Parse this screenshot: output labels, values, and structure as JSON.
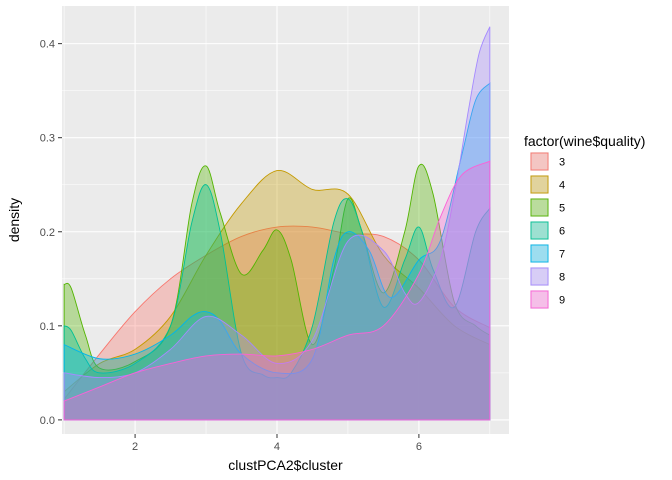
{
  "chart_data": {
    "type": "area",
    "xlabel": "clustPCA2$cluster",
    "ylabel": "density",
    "xlim": [
      0.97,
      7.27
    ],
    "ylim": [
      -0.015,
      0.44
    ],
    "x_ticks": [
      2,
      4,
      6
    ],
    "x_tick_labels": [
      "2",
      "4",
      "6"
    ],
    "y_ticks": [
      0.0,
      0.1,
      0.2,
      0.3,
      0.4
    ],
    "y_tick_labels": [
      "0.0",
      "0.1",
      "0.2",
      "0.3",
      "0.4"
    ],
    "grid": true,
    "legend": {
      "title": "factor(wine$quality)",
      "position": "right"
    },
    "series": [
      {
        "name": "3",
        "color": "#F8766D",
        "x": [
          1.0,
          1.5,
          2.0,
          2.5,
          3.0,
          3.5,
          4.0,
          4.5,
          5.0,
          5.5,
          6.0,
          6.5,
          7.0
        ],
        "y": [
          0.022,
          0.07,
          0.115,
          0.15,
          0.175,
          0.195,
          0.205,
          0.205,
          0.198,
          0.195,
          0.17,
          0.12,
          0.098
        ]
      },
      {
        "name": "4",
        "color": "#C49A00",
        "x": [
          1.0,
          1.5,
          2.0,
          2.5,
          3.0,
          3.5,
          4.0,
          4.5,
          5.0,
          5.5,
          6.0,
          6.5,
          7.0
        ],
        "y": [
          0.03,
          0.06,
          0.075,
          0.11,
          0.175,
          0.23,
          0.265,
          0.245,
          0.24,
          0.175,
          0.14,
          0.1,
          0.08
        ]
      },
      {
        "name": "5",
        "color": "#53B400",
        "x": [
          1.0,
          1.1,
          1.3,
          1.5,
          2.0,
          2.5,
          2.8,
          3.0,
          3.2,
          3.5,
          3.8,
          4.0,
          4.2,
          4.5,
          4.8,
          5.0,
          5.2,
          5.5,
          5.8,
          6.0,
          6.2,
          6.5,
          6.8,
          7.0
        ],
        "y": [
          0.144,
          0.14,
          0.09,
          0.055,
          0.062,
          0.1,
          0.23,
          0.27,
          0.22,
          0.155,
          0.18,
          0.202,
          0.17,
          0.08,
          0.16,
          0.235,
          0.2,
          0.135,
          0.2,
          0.27,
          0.24,
          0.125,
          0.1,
          0.09
        ]
      },
      {
        "name": "6",
        "color": "#00C094",
        "x": [
          1.0,
          1.1,
          1.3,
          1.5,
          2.0,
          2.5,
          2.8,
          3.0,
          3.2,
          3.5,
          3.8,
          4.0,
          4.2,
          4.5,
          4.8,
          5.0,
          5.2,
          5.5,
          5.8,
          6.0,
          6.2,
          6.5,
          6.8,
          7.0
        ],
        "y": [
          0.1,
          0.095,
          0.065,
          0.05,
          0.06,
          0.1,
          0.21,
          0.25,
          0.2,
          0.07,
          0.048,
          0.045,
          0.05,
          0.1,
          0.21,
          0.235,
          0.2,
          0.12,
          0.17,
          0.205,
          0.16,
          0.12,
          0.2,
          0.225
        ]
      },
      {
        "name": "7",
        "color": "#00B6EB",
        "x": [
          1.0,
          1.5,
          2.0,
          2.5,
          2.8,
          3.0,
          3.2,
          3.5,
          4.0,
          4.5,
          4.8,
          5.0,
          5.3,
          5.6,
          6.0,
          6.3,
          6.6,
          6.8,
          7.0
        ],
        "y": [
          0.08,
          0.065,
          0.07,
          0.09,
          0.11,
          0.115,
          0.105,
          0.07,
          0.05,
          0.065,
          0.17,
          0.2,
          0.18,
          0.13,
          0.17,
          0.19,
          0.28,
          0.34,
          0.358
        ]
      },
      {
        "name": "8",
        "color": "#A58AFF",
        "x": [
          1.0,
          1.5,
          2.0,
          2.5,
          3.0,
          3.5,
          4.0,
          4.5,
          5.0,
          5.5,
          5.8,
          6.0,
          6.3,
          6.5,
          6.7,
          6.85,
          7.0
        ],
        "y": [
          0.05,
          0.045,
          0.05,
          0.075,
          0.11,
          0.09,
          0.06,
          0.085,
          0.19,
          0.18,
          0.135,
          0.125,
          0.17,
          0.24,
          0.33,
          0.39,
          0.418
        ]
      },
      {
        "name": "9",
        "color": "#FB61D7",
        "x": [
          1.0,
          1.5,
          2.0,
          2.5,
          3.0,
          3.5,
          4.0,
          4.5,
          5.0,
          5.5,
          6.0,
          6.3,
          6.6,
          7.0
        ],
        "y": [
          0.02,
          0.035,
          0.05,
          0.06,
          0.068,
          0.07,
          0.068,
          0.075,
          0.09,
          0.1,
          0.155,
          0.215,
          0.26,
          0.275
        ]
      }
    ]
  }
}
